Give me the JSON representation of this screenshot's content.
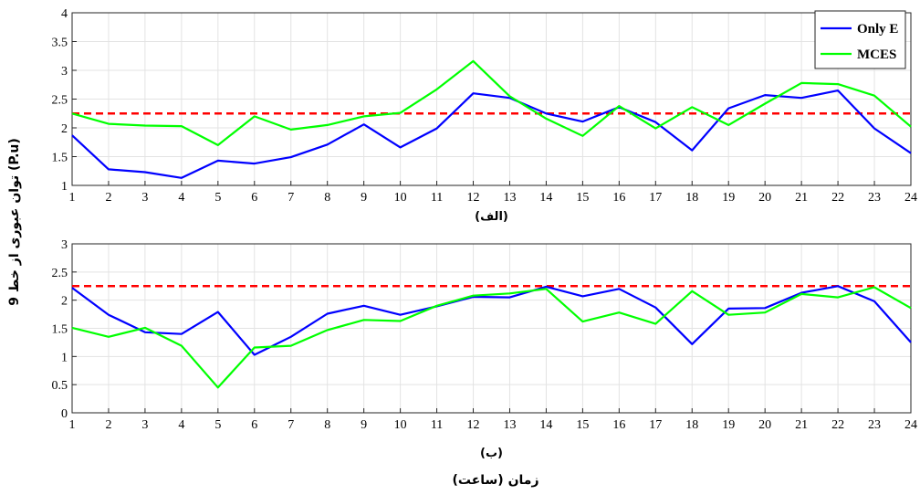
{
  "chart_data": [
    {
      "type": "line",
      "panel_label": "(الف)",
      "x": [
        1,
        2,
        3,
        4,
        5,
        6,
        7,
        8,
        9,
        10,
        11,
        12,
        13,
        14,
        15,
        16,
        17,
        18,
        19,
        20,
        21,
        22,
        23,
        24
      ],
      "xlim": [
        1,
        24
      ],
      "ylim": [
        1,
        4
      ],
      "yticks": [
        1,
        1.5,
        2,
        2.5,
        3,
        3.5,
        4
      ],
      "ytick_labels": [
        "1",
        "1.5",
        "2",
        "2.5",
        "3",
        "3.5",
        "4"
      ],
      "grid": true,
      "legend_position": "top-right",
      "series": [
        {
          "name": "Only E",
          "color": "#0000ff",
          "values": [
            1.87,
            1.28,
            1.23,
            1.13,
            1.43,
            1.38,
            1.49,
            1.71,
            2.06,
            1.66,
            1.99,
            2.6,
            2.52,
            2.25,
            2.11,
            2.36,
            2.1,
            1.61,
            2.34,
            2.57,
            2.52,
            2.65,
            1.99,
            1.56
          ]
        },
        {
          "name": "MCES",
          "color": "#00ff00",
          "values": [
            2.25,
            2.07,
            2.04,
            2.03,
            1.7,
            2.2,
            1.97,
            2.05,
            2.2,
            2.26,
            2.67,
            3.16,
            2.55,
            2.16,
            1.86,
            2.38,
            1.99,
            2.36,
            2.05,
            2.42,
            2.78,
            2.76,
            2.56,
            2.02
          ]
        }
      ],
      "reference_line": {
        "value": 2.25,
        "color": "#ff0000"
      }
    },
    {
      "type": "line",
      "panel_label": "(ب)",
      "x": [
        1,
        2,
        3,
        4,
        5,
        6,
        7,
        8,
        9,
        10,
        11,
        12,
        13,
        14,
        15,
        16,
        17,
        18,
        19,
        20,
        21,
        22,
        23,
        24
      ],
      "xlim": [
        1,
        24
      ],
      "ylim": [
        0,
        3
      ],
      "yticks": [
        0,
        0.5,
        1,
        1.5,
        2,
        2.5,
        3
      ],
      "ytick_labels": [
        "0",
        "0.5",
        "1",
        "1.5",
        "2",
        "2.5",
        "3"
      ],
      "grid": true,
      "series": [
        {
          "color": "#0000ff",
          "values": [
            2.22,
            1.74,
            1.43,
            1.4,
            1.79,
            1.03,
            1.35,
            1.76,
            1.9,
            1.74,
            1.89,
            2.06,
            2.05,
            2.24,
            2.07,
            2.2,
            1.87,
            1.22,
            1.85,
            1.86,
            2.13,
            2.25,
            1.98,
            1.25
          ]
        },
        {
          "color": "#00ff00",
          "values": [
            1.51,
            1.35,
            1.51,
            1.19,
            0.45,
            1.16,
            1.19,
            1.47,
            1.65,
            1.63,
            1.9,
            2.08,
            2.12,
            2.2,
            1.62,
            1.78,
            1.58,
            2.16,
            1.74,
            1.78,
            2.11,
            2.05,
            2.23,
            1.86
          ]
        }
      ],
      "reference_line": {
        "value": 2.25,
        "color": "#ff0000"
      }
    }
  ],
  "figure": {
    "ylabel": "توان عبوری از خط 9 (P.u)",
    "xlabel": "زمان (ساعت)"
  }
}
